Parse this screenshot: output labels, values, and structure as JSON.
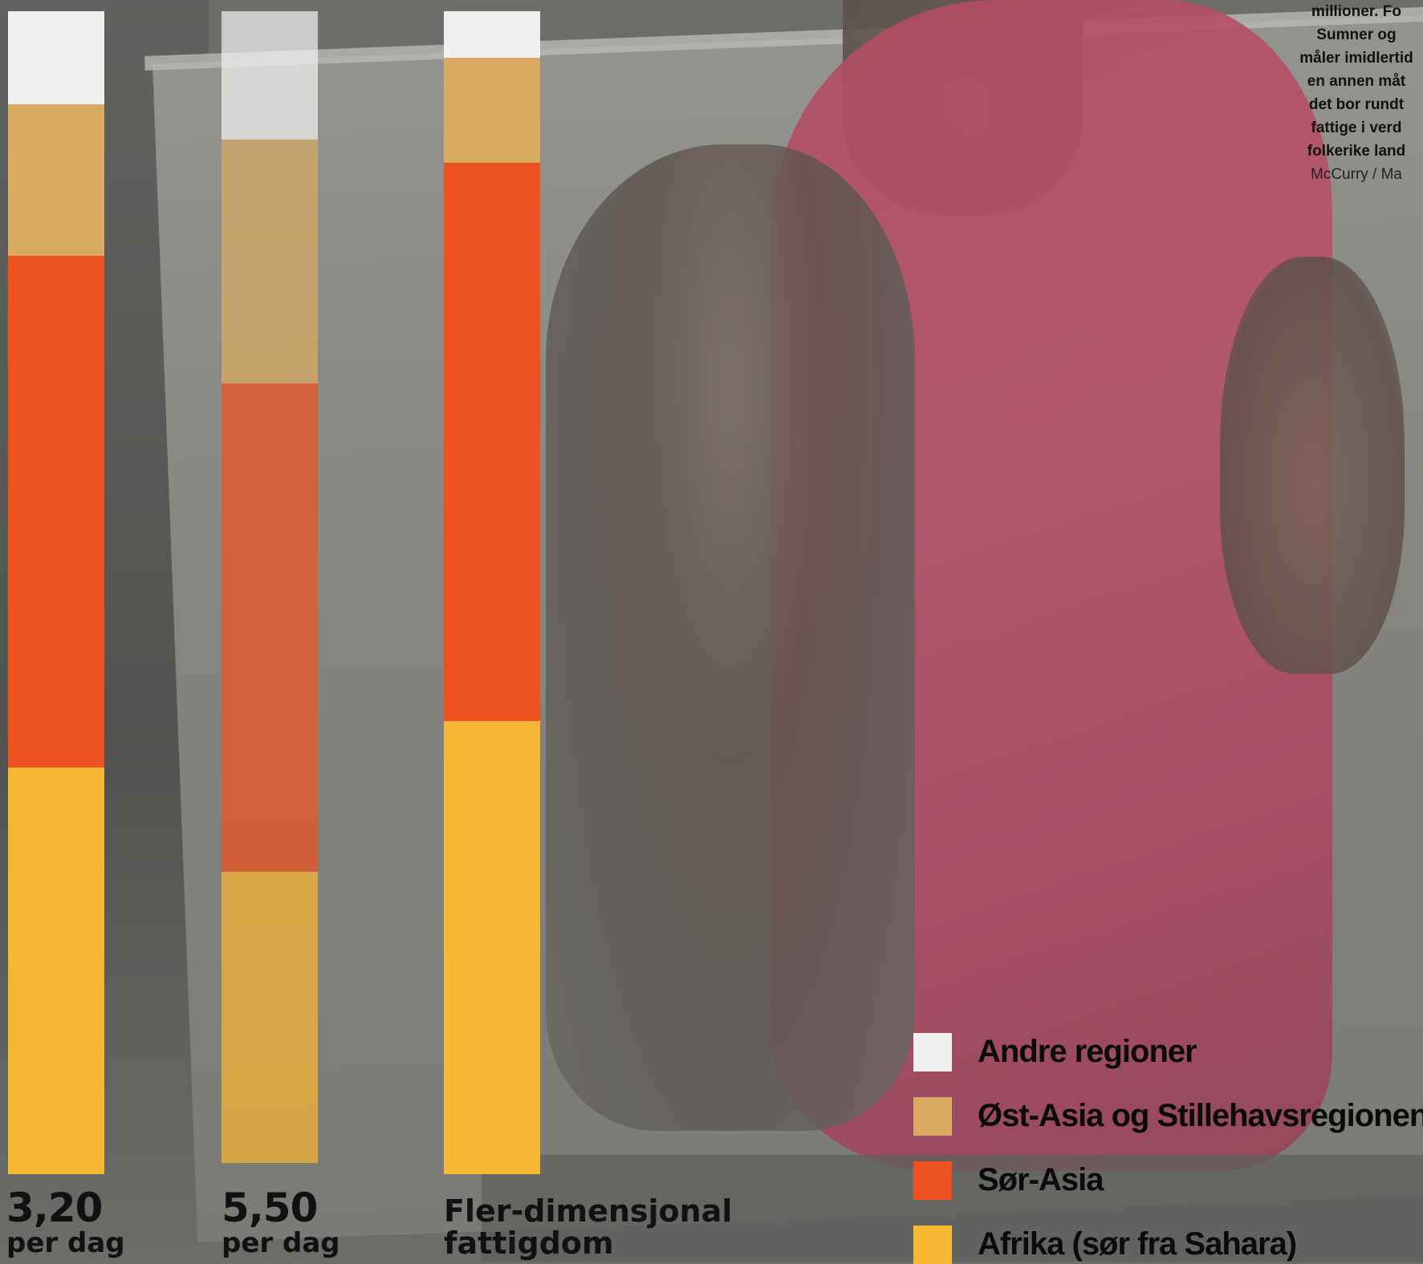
{
  "chart_data": {
    "type": "bar",
    "stacked": true,
    "normalized": true,
    "categories": [
      "3,20 per dag",
      "5,50 per dag",
      "Fler-dimensjonal fattigdom"
    ],
    "legend": [
      {
        "name": "Andre regioner",
        "color": "#f0f0f0"
      },
      {
        "name": "Øst-Asia og Stillehavsregionen",
        "color": "#d9ab62"
      },
      {
        "name": "Sør-Asia",
        "color": "#ee5220"
      },
      {
        "name": "Afrika (sør fra Sahara)",
        "color": "#f7b732"
      }
    ],
    "series": [
      {
        "name": "Afrika (sør fra Sahara)",
        "color": "#f7b732",
        "values": [
          35,
          25,
          39
        ]
      },
      {
        "name": "Sør-Asia",
        "color": "#ee5220",
        "values": [
          44,
          42,
          48
        ]
      },
      {
        "name": "Øst-Asia og Stillehavsregionen",
        "color": "#d9ab62",
        "values": [
          13,
          21,
          9
        ]
      },
      {
        "name": "Andre regioner",
        "color": "#f0f0f0",
        "values": [
          8,
          11,
          4
        ]
      }
    ],
    "ylim": [
      0,
      100
    ]
  },
  "bars": [
    {
      "value": "3,20",
      "unit": "per dag"
    },
    {
      "value": "5,50",
      "unit": "per dag"
    },
    {
      "line1": "Fler-dimensjonal",
      "line2": "fattigdom"
    }
  ],
  "caption": {
    "lines": [
      "millioner. Fo",
      "Sumner og",
      "måler imidlertid",
      "en annen måt",
      "det bor rundt",
      "fattige i verd",
      "folkerike land"
    ],
    "credit": "McCurry / Ma"
  }
}
